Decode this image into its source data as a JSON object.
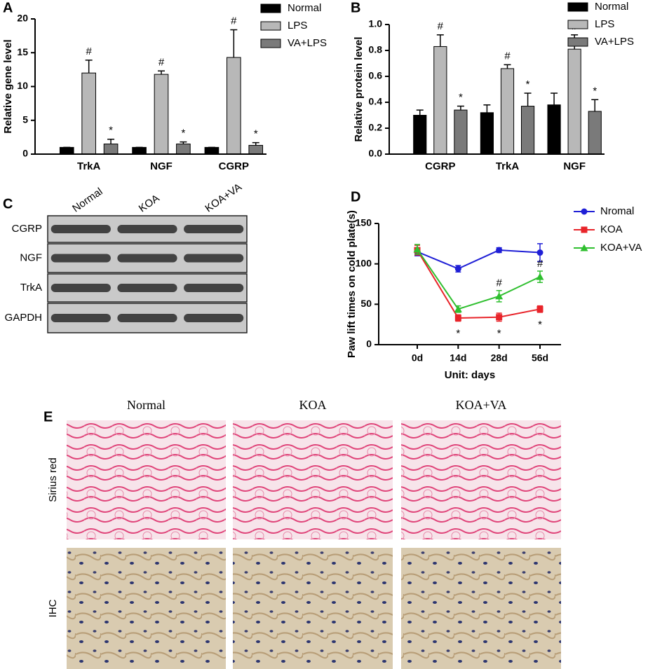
{
  "chart_data": [
    {
      "type": "bar",
      "panel": "A",
      "ylabel": "Relative gene level",
      "categories": [
        "TrkA",
        "NGF",
        "CGRP"
      ],
      "series": [
        {
          "name": "Normal",
          "color": "#000000",
          "values": [
            1,
            1,
            1
          ],
          "errors": [
            0,
            0,
            0
          ]
        },
        {
          "name": "LPS",
          "color": "#b8b8b8",
          "values": [
            12,
            11.8,
            14.3
          ],
          "errors": [
            1.9,
            0.5,
            4.1
          ],
          "labels": [
            "#",
            "#",
            "#"
          ]
        },
        {
          "name": "VA+LPS",
          "color": "#7a7a7a",
          "values": [
            1.5,
            1.5,
            1.3
          ],
          "errors": [
            0.7,
            0.3,
            0.4
          ],
          "labels": [
            "*",
            "*",
            "*"
          ]
        }
      ],
      "ylim": [
        0,
        20
      ],
      "yticks": [
        0,
        5,
        10,
        15,
        20
      ]
    },
    {
      "type": "bar",
      "panel": "B",
      "ylabel": "Relative protein level",
      "categories": [
        "CGRP",
        "TrkA",
        "NGF"
      ],
      "series": [
        {
          "name": "Normal",
          "color": "#000000",
          "values": [
            0.3,
            0.32,
            0.38
          ],
          "errors": [
            0.04,
            0.06,
            0.09
          ]
        },
        {
          "name": "LPS",
          "color": "#b8b8b8",
          "values": [
            0.83,
            0.66,
            0.81
          ],
          "errors": [
            0.09,
            0.03,
            0.11
          ],
          "labels": [
            "#",
            "#",
            "#"
          ]
        },
        {
          "name": "VA+LPS",
          "color": "#7a7a7a",
          "values": [
            0.34,
            0.37,
            0.33
          ],
          "errors": [
            0.03,
            0.1,
            0.09
          ],
          "labels": [
            "*",
            "*",
            "*"
          ]
        }
      ],
      "ylim": [
        0,
        1.0
      ],
      "yticks": [
        {
          "value": 0,
          "label": "0.0"
        },
        0.2,
        0.4,
        0.6,
        0.8,
        {
          "value": 1.0,
          "label": "1.0"
        }
      ]
    },
    {
      "type": "line",
      "panel": "D",
      "ylabel": "Paw lift times on cold plate(s)",
      "xlabel": "Unit: days",
      "categories": [
        "0d",
        "14d",
        "28d",
        "56d"
      ],
      "series": [
        {
          "name": "Nromal",
          "color": "#1f1fd6",
          "marker": "circle",
          "values": [
            115,
            94,
            117,
            114
          ],
          "errors": [
            5,
            4,
            3,
            11
          ]
        },
        {
          "name": "KOA",
          "color": "#e8242a",
          "marker": "square",
          "values": [
            117,
            33,
            34,
            44
          ],
          "errors": [
            6,
            4,
            5,
            4
          ],
          "labels": [
            null,
            "*",
            "*",
            "*"
          ]
        },
        {
          "name": "KOA+VA",
          "color": "#2fbf2f",
          "marker": "triangle",
          "values": [
            118,
            44,
            60,
            84
          ],
          "errors": [
            6,
            4,
            7,
            7
          ],
          "labels": [
            null,
            null,
            "#",
            "#"
          ]
        }
      ],
      "ylim": [
        0,
        150
      ],
      "yticks": [
        0,
        50,
        100,
        150
      ]
    }
  ],
  "blot": {
    "panel": "C",
    "lanes": [
      "Normal",
      "KOA",
      "KOA+VA"
    ],
    "rows": [
      "CGRP",
      "NGF",
      "TrkA",
      "GAPDH"
    ]
  },
  "histology": {
    "panel": "E",
    "columns": [
      "Normal",
      "KOA",
      "KOA+VA"
    ],
    "rows": [
      "Sirius red",
      "IHC"
    ]
  }
}
